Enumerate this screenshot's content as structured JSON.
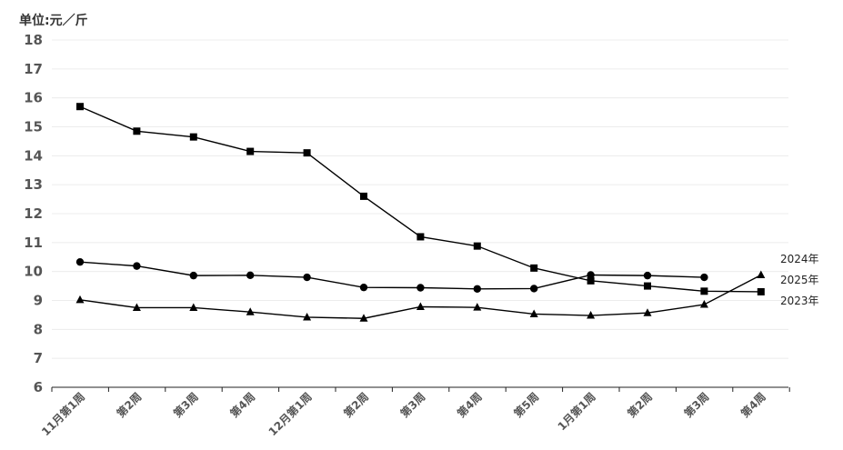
{
  "chart_data": {
    "type": "line",
    "unit_label": "单位:元／斤",
    "categories": [
      "11月第1周",
      "第2周",
      "第3周",
      "第4周",
      "12月第1周",
      "第2周",
      "第3周",
      "第4周",
      "第5周",
      "1月第1周",
      "第2周",
      "第3周",
      "第4周"
    ],
    "ylim": [
      6,
      18
    ],
    "y_ticks": [
      "18",
      "17",
      "16",
      "15",
      "14",
      "13",
      "12",
      "11",
      "10",
      "9",
      "8",
      "7",
      "6"
    ],
    "grid": true,
    "series": [
      {
        "name": "2024年",
        "marker": "square",
        "values": [
          15.7,
          14.85,
          14.65,
          14.15,
          14.1,
          12.6,
          11.2,
          10.88,
          10.12,
          9.68,
          9.5,
          9.32,
          9.3
        ]
      },
      {
        "name": "2025年",
        "marker": "circle",
        "values": [
          10.33,
          10.19,
          9.86,
          9.87,
          9.8,
          9.45,
          9.44,
          9.4,
          9.41,
          9.88,
          9.86,
          9.8,
          null
        ]
      },
      {
        "name": "2023年",
        "marker": "triangle",
        "values": [
          9.02,
          8.75,
          8.75,
          8.6,
          8.42,
          8.38,
          8.78,
          8.76,
          8.53,
          8.48,
          8.57,
          8.86,
          9.88
        ]
      }
    ],
    "colors": {
      "line": "#000000",
      "grid": "#ececec",
      "axis": "#222222",
      "tick_label": "#555555"
    }
  }
}
